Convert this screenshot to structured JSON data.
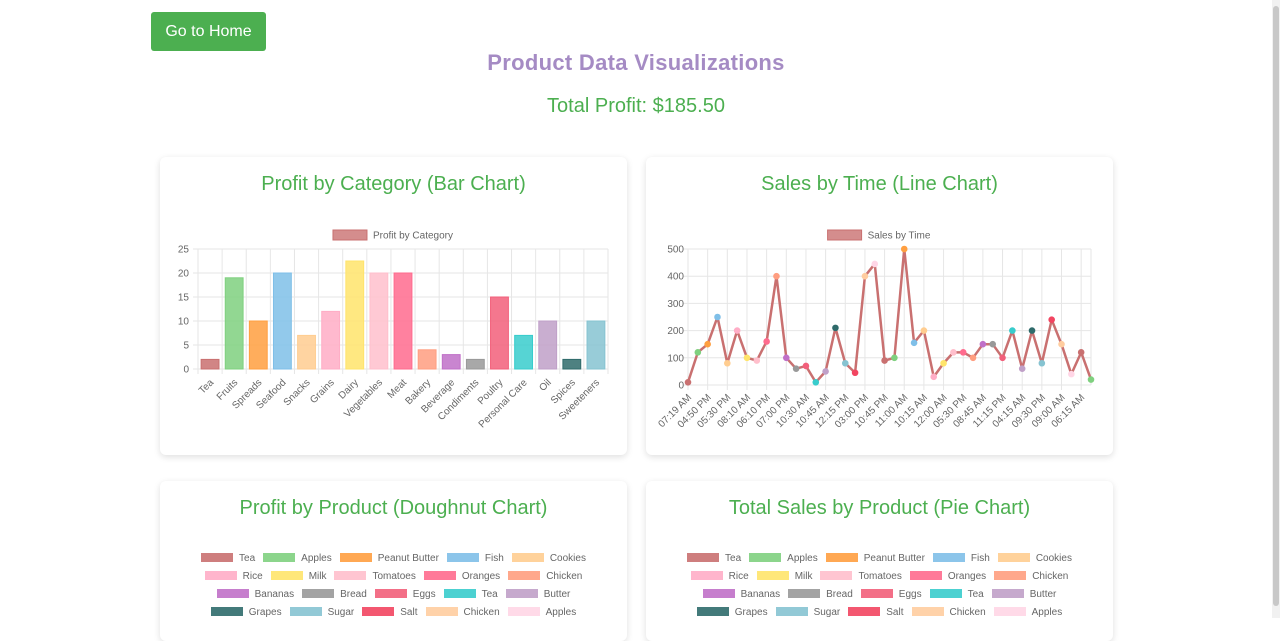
{
  "home_button": "Go to Home",
  "title": "Product Data Visualizations",
  "total_profit": "Total Profit: $185.50",
  "colors": {
    "accent": "#4caf50",
    "title": "#a58bc4",
    "palette": [
      "#c97070",
      "#7fd07f",
      "#ff9f40",
      "#7fbfe8",
      "#ffcd90",
      "#ffadc6",
      "#ffe46b",
      "#ffbfcc",
      "#ff6b8e",
      "#ff9e80",
      "#c070c8",
      "#999999",
      "#f25f7a",
      "#38cccc",
      "#c0a0c8",
      "#2f6b6b",
      "#86c3d1",
      "#f24561",
      "#ffcda0",
      "#ffd6e6"
    ]
  },
  "chart_data": [
    {
      "type": "bar",
      "title": "Profit by Category (Bar Chart)",
      "legend": "Profit by Category",
      "legend_color": "#c97070",
      "categories": [
        "Tea",
        "Fruits",
        "Spreads",
        "Seafood",
        "Snacks",
        "Grains",
        "Dairy",
        "Vegetables",
        "Meat",
        "Bakery",
        "Beverage",
        "Condiments",
        "Poultry",
        "Personal Care",
        "Oil",
        "Spices",
        "Sweeteners"
      ],
      "values": [
        2,
        19,
        10,
        20,
        7,
        12,
        22.5,
        20,
        20,
        4,
        3,
        2,
        15,
        7,
        10,
        2,
        10
      ],
      "colors": [
        "#c97070",
        "#7fd07f",
        "#ff9f40",
        "#7fbfe8",
        "#ffcd90",
        "#ffadc6",
        "#ffe46b",
        "#ffbfcc",
        "#ff6b8e",
        "#ff9e80",
        "#c070c8",
        "#999999",
        "#f25f7a",
        "#38cccc",
        "#c0a0c8",
        "#2f6b6b",
        "#86c3d1"
      ],
      "ylim": [
        0,
        25
      ],
      "yticks": [
        0,
        5,
        10,
        15,
        20,
        25
      ]
    },
    {
      "type": "line",
      "title": "Sales by Time (Line Chart)",
      "legend": "Sales by Time",
      "legend_color": "#c97070",
      "x": [
        "07:19 AM",
        "",
        "04:50 PM",
        "",
        "05:30 PM",
        "",
        "08:10 AM",
        "",
        "06:10 PM",
        "",
        "07:00 PM",
        "",
        "10:30 AM",
        "",
        "10:45 AM",
        "",
        "12:15 PM",
        "",
        "03:00 PM",
        "",
        "10:45 PM",
        "",
        "11:00 AM",
        "",
        "10:15 AM",
        "",
        "12:00 AM",
        "",
        "05:30 PM",
        "",
        "08:45 AM",
        "",
        "11:15 PM",
        "",
        "04:15 AM",
        "",
        "09:30 PM",
        "",
        "09:00 AM",
        "",
        "06:15 AM",
        ""
      ],
      "values": [
        10,
        120,
        150,
        250,
        80,
        200,
        100,
        90,
        160,
        400,
        100,
        60,
        70,
        10,
        50,
        210,
        80,
        45,
        400,
        445,
        90,
        100,
        500,
        155,
        200,
        30,
        80,
        120,
        120,
        100,
        150,
        150,
        100,
        200,
        60,
        200,
        80,
        240,
        150,
        40,
        120,
        20
      ],
      "point_colors": [
        "#c97070",
        "#7fd07f",
        "#ff9f40",
        "#7fbfe8",
        "#ffcd90",
        "#ffadc6",
        "#ffe46b",
        "#ffbfcc",
        "#ff6b8e",
        "#ff9e80",
        "#c070c8",
        "#999999",
        "#f25f7a",
        "#38cccc",
        "#c0a0c8",
        "#2f6b6b",
        "#86c3d1",
        "#f24561",
        "#ffcda0",
        "#ffd6e6"
      ],
      "ylim": [
        0,
        500
      ],
      "yticks": [
        0,
        100,
        200,
        300,
        400,
        500
      ]
    },
    {
      "type": "pie",
      "variant": "doughnut",
      "title": "Profit by Product (Doughnut Chart)",
      "legend_rows": [
        [
          {
            "label": "Tea",
            "color": "#c97070"
          },
          {
            "label": "Apples",
            "color": "#7fd07f"
          },
          {
            "label": "Peanut Butter",
            "color": "#ff9f40"
          },
          {
            "label": "Fish",
            "color": "#7fbfe8"
          },
          {
            "label": "Cookies",
            "color": "#ffcd90"
          }
        ],
        [
          {
            "label": "Rice",
            "color": "#ffadc6"
          },
          {
            "label": "Milk",
            "color": "#ffe46b"
          },
          {
            "label": "Tomatoes",
            "color": "#ffbfcc"
          },
          {
            "label": "Oranges",
            "color": "#ff6b8e"
          },
          {
            "label": "Chicken",
            "color": "#ff9e80"
          }
        ],
        [
          {
            "label": "Bananas",
            "color": "#c070c8"
          },
          {
            "label": "Bread",
            "color": "#999999"
          },
          {
            "label": "Eggs",
            "color": "#f25f7a"
          },
          {
            "label": "Tea",
            "color": "#38cccc"
          },
          {
            "label": "Butter",
            "color": "#c0a0c8"
          }
        ],
        [
          {
            "label": "Grapes",
            "color": "#2f6b6b"
          },
          {
            "label": "Sugar",
            "color": "#86c3d1"
          },
          {
            "label": "Salt",
            "color": "#f24561"
          },
          {
            "label": "Chicken",
            "color": "#ffcda0"
          },
          {
            "label": "Apples",
            "color": "#ffd6e6"
          }
        ]
      ]
    },
    {
      "type": "pie",
      "title": "Total Sales by Product (Pie Chart)",
      "legend_rows": [
        [
          {
            "label": "Tea",
            "color": "#c97070"
          },
          {
            "label": "Apples",
            "color": "#7fd07f"
          },
          {
            "label": "Peanut Butter",
            "color": "#ff9f40"
          },
          {
            "label": "Fish",
            "color": "#7fbfe8"
          },
          {
            "label": "Cookies",
            "color": "#ffcd90"
          }
        ],
        [
          {
            "label": "Rice",
            "color": "#ffadc6"
          },
          {
            "label": "Milk",
            "color": "#ffe46b"
          },
          {
            "label": "Tomatoes",
            "color": "#ffbfcc"
          },
          {
            "label": "Oranges",
            "color": "#ff6b8e"
          },
          {
            "label": "Chicken",
            "color": "#ff9e80"
          }
        ],
        [
          {
            "label": "Bananas",
            "color": "#c070c8"
          },
          {
            "label": "Bread",
            "color": "#999999"
          },
          {
            "label": "Eggs",
            "color": "#f25f7a"
          },
          {
            "label": "Tea",
            "color": "#38cccc"
          },
          {
            "label": "Butter",
            "color": "#c0a0c8"
          }
        ],
        [
          {
            "label": "Grapes",
            "color": "#2f6b6b"
          },
          {
            "label": "Sugar",
            "color": "#86c3d1"
          },
          {
            "label": "Salt",
            "color": "#f24561"
          },
          {
            "label": "Chicken",
            "color": "#ffcda0"
          },
          {
            "label": "Apples",
            "color": "#ffd6e6"
          }
        ]
      ]
    }
  ]
}
